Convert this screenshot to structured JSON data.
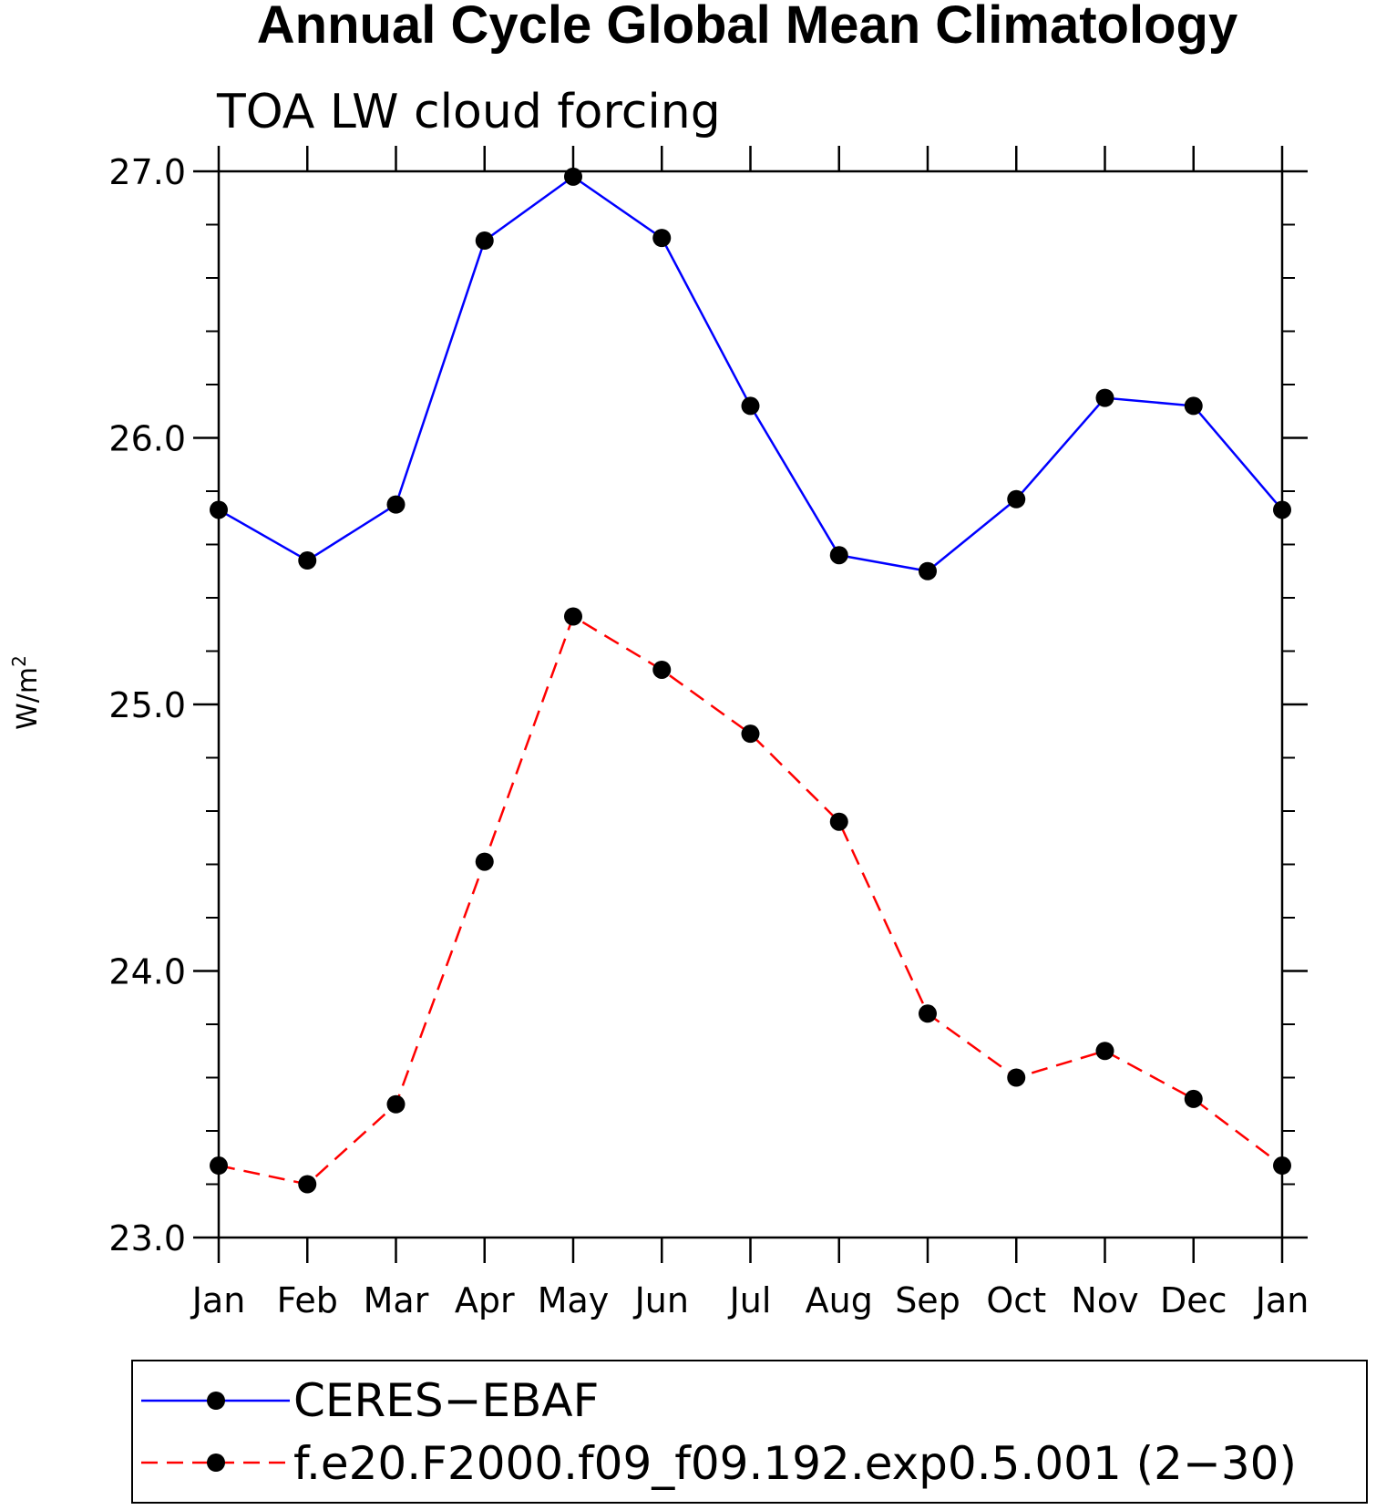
{
  "chart_data": {
    "type": "line",
    "title": "Annual Cycle Global Mean Climatology",
    "subtitle": "TOA LW cloud forcing",
    "xlabel": "",
    "ylabel": "W/m",
    "ylabel_superscript": "2",
    "categories": [
      "Jan",
      "Feb",
      "Mar",
      "Apr",
      "May",
      "Jun",
      "Jul",
      "Aug",
      "Sep",
      "Oct",
      "Nov",
      "Dec",
      "Jan"
    ],
    "ylim": [
      23.0,
      27.0
    ],
    "yticks": [
      23.0,
      24.0,
      25.0,
      26.0,
      27.0
    ],
    "ytick_labels": [
      "23.0",
      "24.0",
      "25.0",
      "26.0",
      "27.0"
    ],
    "grid": false,
    "legend_position": "bottom",
    "series": [
      {
        "name": "CERES−EBAF",
        "color": "#0000ff",
        "line_style": "solid",
        "marker": "filled-circle",
        "values": [
          25.73,
          25.54,
          25.75,
          26.74,
          26.98,
          26.75,
          26.12,
          25.56,
          25.5,
          25.77,
          26.15,
          26.12,
          25.73
        ]
      },
      {
        "name": "f.e20.F2000.f09_f09.192.exp0.5.001 (2−30)",
        "color": "#ff0000",
        "line_style": "dashed",
        "marker": "filled-circle",
        "values": [
          23.27,
          23.2,
          23.5,
          24.41,
          25.33,
          25.13,
          24.89,
          24.56,
          23.84,
          23.6,
          23.7,
          23.52,
          23.27
        ]
      }
    ]
  }
}
